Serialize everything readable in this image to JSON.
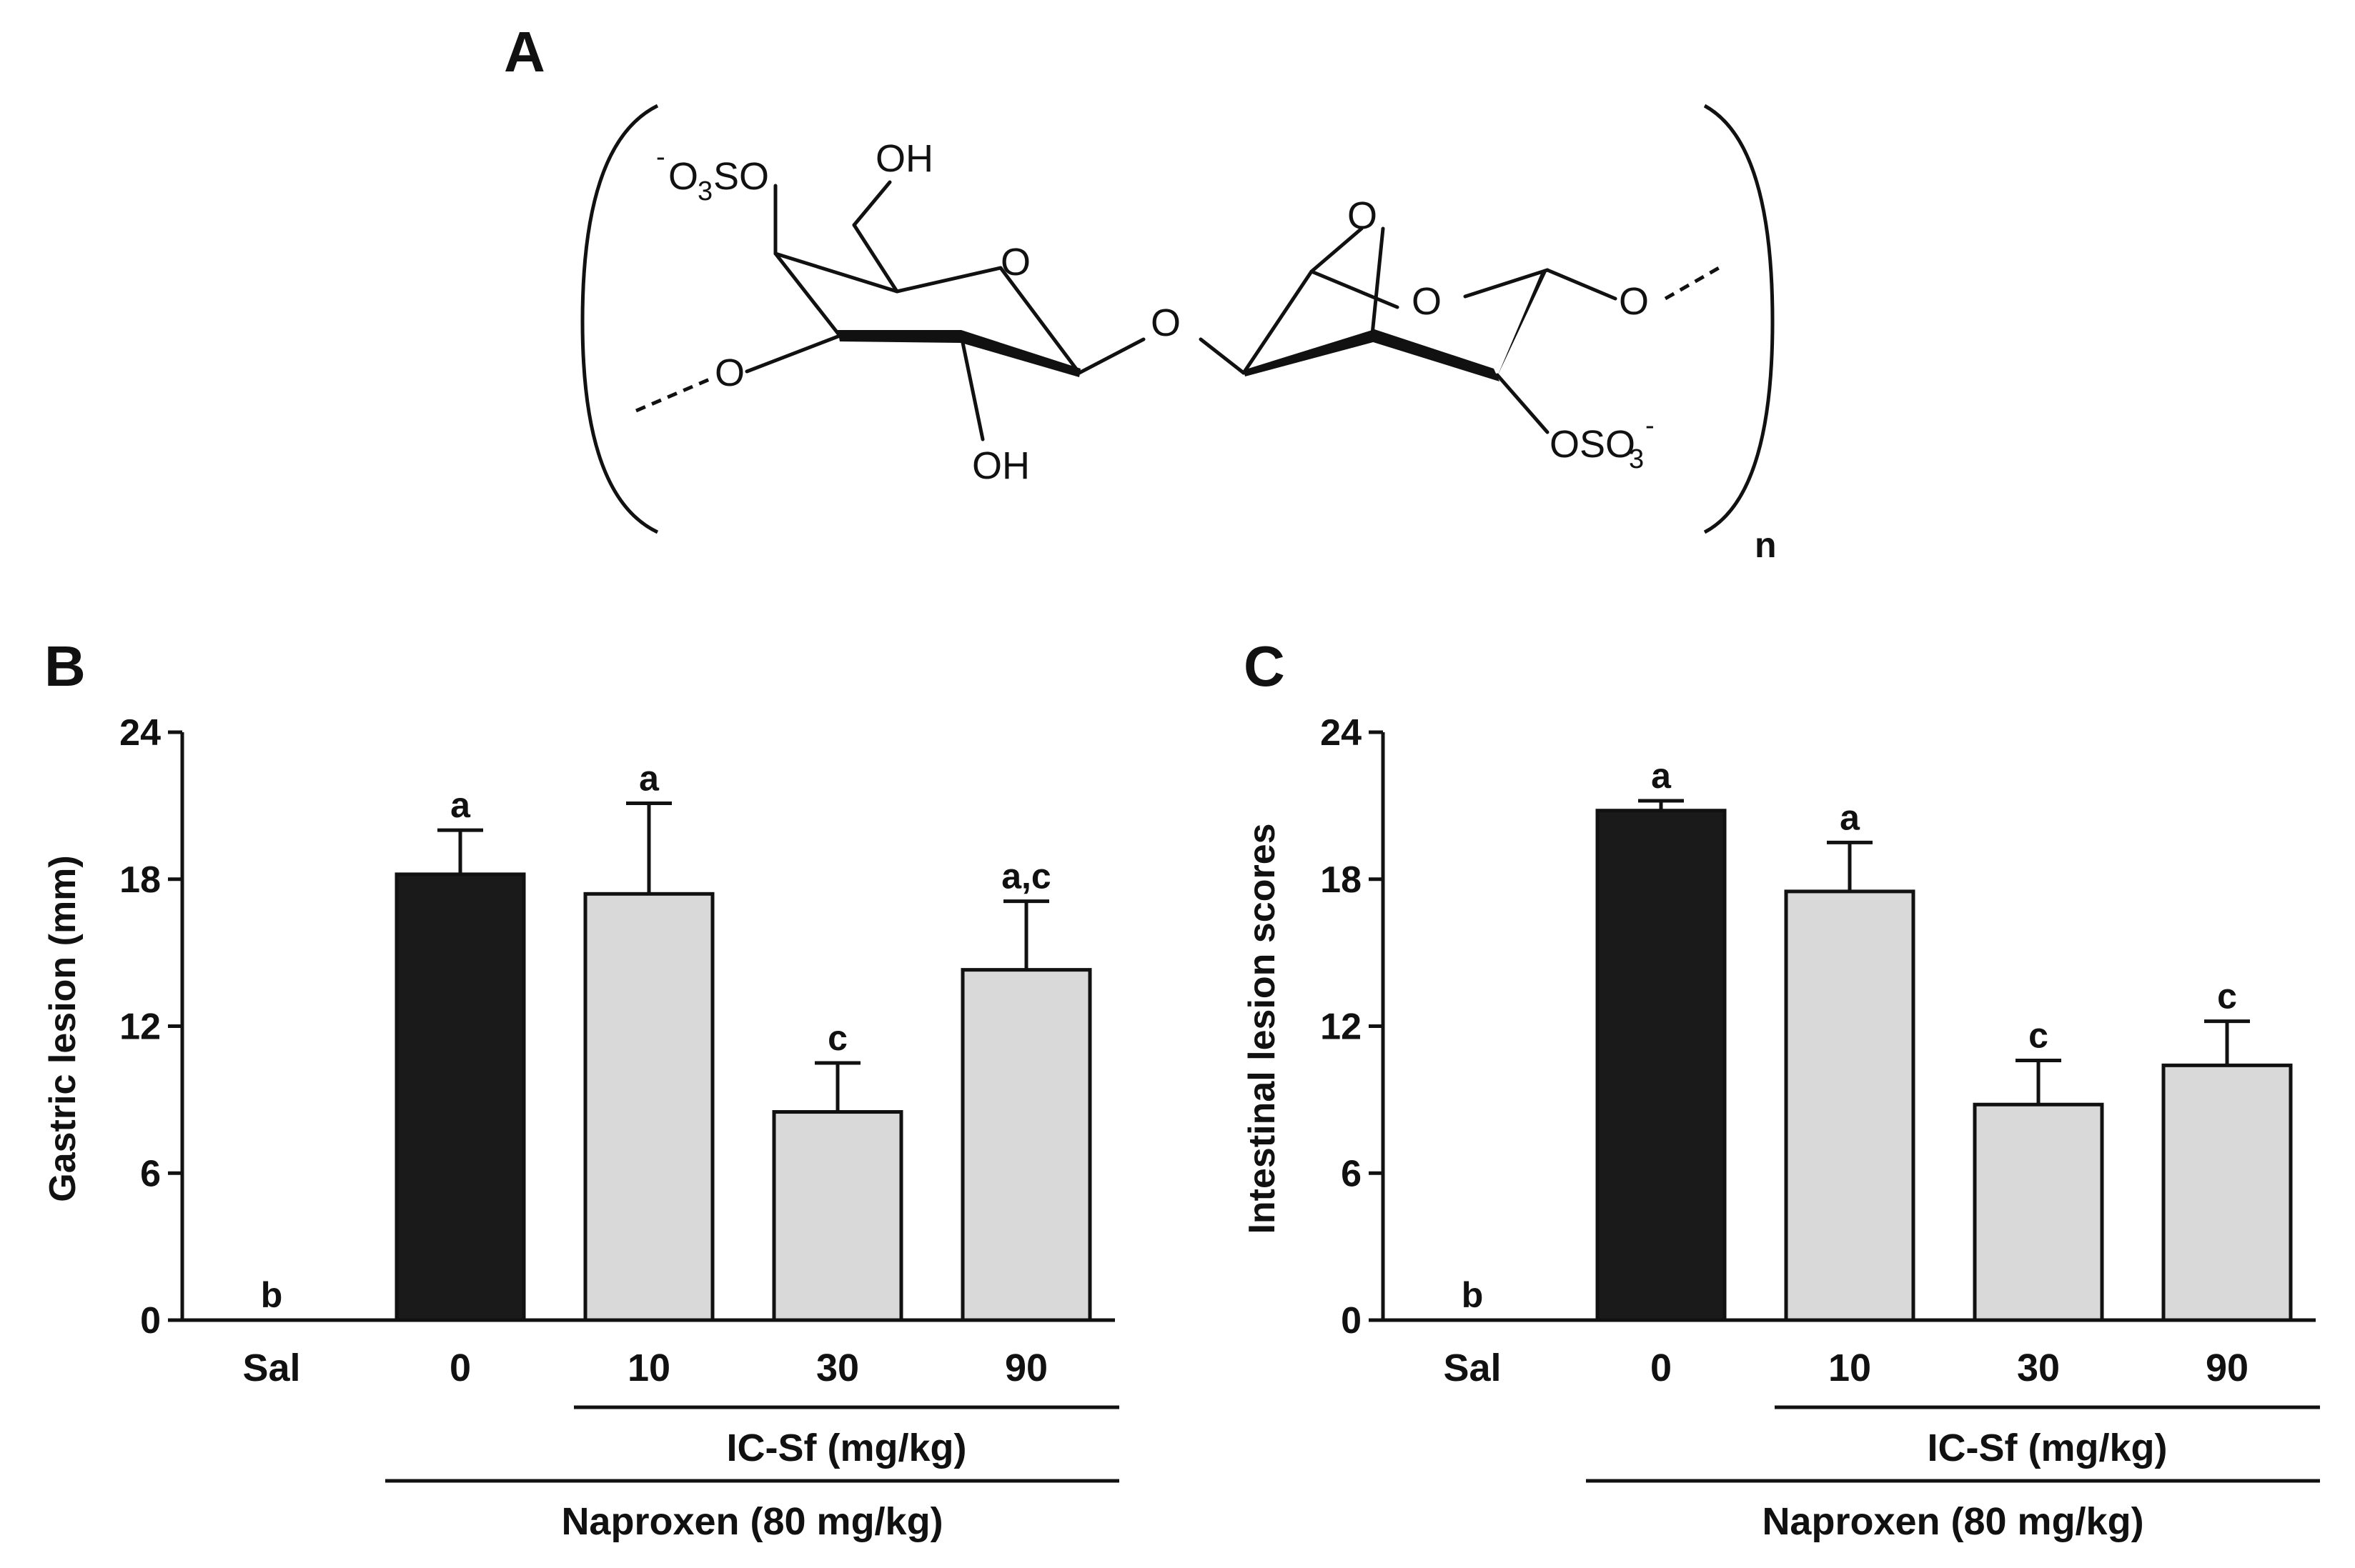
{
  "figure": {
    "panel_a": {
      "letter": "A",
      "labels": {
        "o3so_charge": "-",
        "o3so_o": "O",
        "o3so_sub": "3",
        "o3so_so": "SO",
        "oh_top": "OH",
        "ring_o_left": "O",
        "bridge_o": "O",
        "ring_o_right": "O",
        "anhydro_o": "O",
        "o_left": "O",
        "o_right": "O",
        "oh_bottom": "OH",
        "oso3_main": "OSO",
        "oso3_sub": "3",
        "oso3_charge": "-",
        "repeat_n": "n"
      }
    }
  },
  "colors": {
    "black_bar": "#1a1a1a",
    "grey_bar": "#d9d9d9",
    "stroke": "#111111"
  },
  "chart_data": [
    {
      "panel": "B",
      "type": "bar",
      "categories": [
        "Sal",
        "0",
        "10",
        "30",
        "90"
      ],
      "values": [
        0,
        18.2,
        17.4,
        8.5,
        14.3
      ],
      "errors": [
        0,
        1.8,
        3.7,
        2.0,
        2.8
      ],
      "bar_colors": [
        "grey",
        "black",
        "grey",
        "grey",
        "grey"
      ],
      "sig_labels": [
        "b",
        "a",
        "a",
        "c",
        "a,c"
      ],
      "xlabel": "",
      "ylabel": "Gastric lesion (mm)",
      "ylim": [
        0,
        24
      ],
      "yticks": [
        0,
        6,
        12,
        18,
        24
      ],
      "groups": [
        {
          "label": "IC-Sf (mg/kg)",
          "from": 2,
          "to": 4
        },
        {
          "label": "Naproxen (80 mg/kg)",
          "from": 1,
          "to": 4
        }
      ],
      "grid": false
    },
    {
      "panel": "C",
      "type": "bar",
      "categories": [
        "Sal",
        "0",
        "10",
        "30",
        "90"
      ],
      "values": [
        0,
        20.8,
        17.5,
        8.8,
        10.4
      ],
      "errors": [
        0,
        0.4,
        2.0,
        1.8,
        1.8
      ],
      "bar_colors": [
        "grey",
        "black",
        "grey",
        "grey",
        "grey"
      ],
      "sig_labels": [
        "b",
        "a",
        "a",
        "c",
        "c"
      ],
      "xlabel": "",
      "ylabel": "Intestinal lesion scores",
      "ylim": [
        0,
        24
      ],
      "yticks": [
        0,
        6,
        12,
        18,
        24
      ],
      "groups": [
        {
          "label": "IC-Sf (mg/kg)",
          "from": 2,
          "to": 4
        },
        {
          "label": "Naproxen (80 mg/kg)",
          "from": 1,
          "to": 4
        }
      ],
      "grid": false
    }
  ]
}
